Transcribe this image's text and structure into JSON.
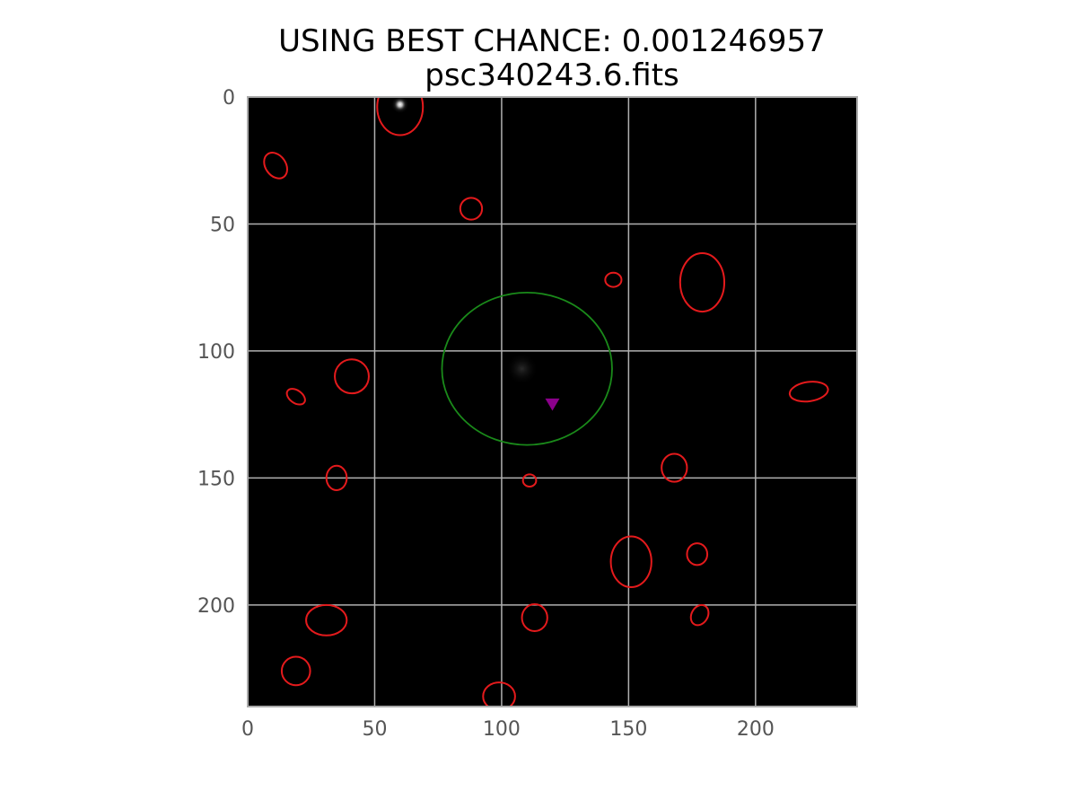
{
  "chart_data": {
    "type": "image",
    "title": "USING BEST CHANCE: 0.001246957",
    "subtitle": "psc340243.6.fits",
    "xlabel": "",
    "ylabel": "",
    "xlim": [
      0,
      240
    ],
    "ylim": [
      240,
      0
    ],
    "x_ticks": [
      "0",
      "50",
      "100",
      "150",
      "200"
    ],
    "y_ticks": [
      "0",
      "50",
      "100",
      "150",
      "200"
    ],
    "x_tick_values": [
      0,
      50,
      100,
      150,
      200
    ],
    "y_tick_values": [
      0,
      50,
      100,
      150,
      200
    ],
    "grid": true,
    "colors": {
      "background": "#000000",
      "sources": "#e41a1c",
      "target_region": "#1a8a1a",
      "marker": "#8b008b",
      "grid": "#b0b0b0",
      "frame": "#aaaaaa"
    },
    "bright_sources": [
      {
        "x": 60,
        "y": 3,
        "intensity": 1.0
      },
      {
        "x": 108,
        "y": 107,
        "intensity": 0.12
      }
    ],
    "target_region": {
      "x": 110,
      "y": 107,
      "rx": 33.5,
      "ry": 30,
      "angle": 0
    },
    "marker": {
      "x": 120,
      "y": 121,
      "symbol": "triangle-down"
    },
    "source_ellipses": [
      {
        "x": 60,
        "y": 4,
        "rx": 9,
        "ry": 11,
        "angle": 0
      },
      {
        "x": 11,
        "y": 27,
        "rx": 4,
        "ry": 5.5,
        "angle": -35
      },
      {
        "x": 88,
        "y": 44,
        "rx": 4.3,
        "ry": 4.3,
        "angle": 0
      },
      {
        "x": 144,
        "y": 72,
        "rx": 3.2,
        "ry": 2.8,
        "angle": 0
      },
      {
        "x": 179,
        "y": 73,
        "rx": 8.7,
        "ry": 11.5,
        "angle": 0
      },
      {
        "x": 41,
        "y": 110,
        "rx": 6.7,
        "ry": 6.7,
        "angle": 0
      },
      {
        "x": 19,
        "y": 118,
        "rx": 2.5,
        "ry": 4,
        "angle": -55
      },
      {
        "x": 221,
        "y": 116,
        "rx": 7.6,
        "ry": 3.8,
        "angle": -8
      },
      {
        "x": 35,
        "y": 150,
        "rx": 4,
        "ry": 4.8,
        "angle": 0
      },
      {
        "x": 111,
        "y": 151,
        "rx": 2.6,
        "ry": 2.4,
        "angle": 0
      },
      {
        "x": 168,
        "y": 146,
        "rx": 5,
        "ry": 5.5,
        "angle": 0
      },
      {
        "x": 151,
        "y": 183,
        "rx": 8,
        "ry": 10,
        "angle": 0
      },
      {
        "x": 177,
        "y": 180,
        "rx": 4,
        "ry": 4.3,
        "angle": 0
      },
      {
        "x": 31,
        "y": 206,
        "rx": 8,
        "ry": 6,
        "angle": 0
      },
      {
        "x": 113,
        "y": 205,
        "rx": 5,
        "ry": 5.3,
        "angle": 0
      },
      {
        "x": 178,
        "y": 204,
        "rx": 3.2,
        "ry": 4.2,
        "angle": 30
      },
      {
        "x": 19,
        "y": 226,
        "rx": 5.6,
        "ry": 5.6,
        "angle": 0
      },
      {
        "x": 99,
        "y": 236,
        "rx": 6.3,
        "ry": 5.5,
        "angle": 0
      }
    ]
  }
}
